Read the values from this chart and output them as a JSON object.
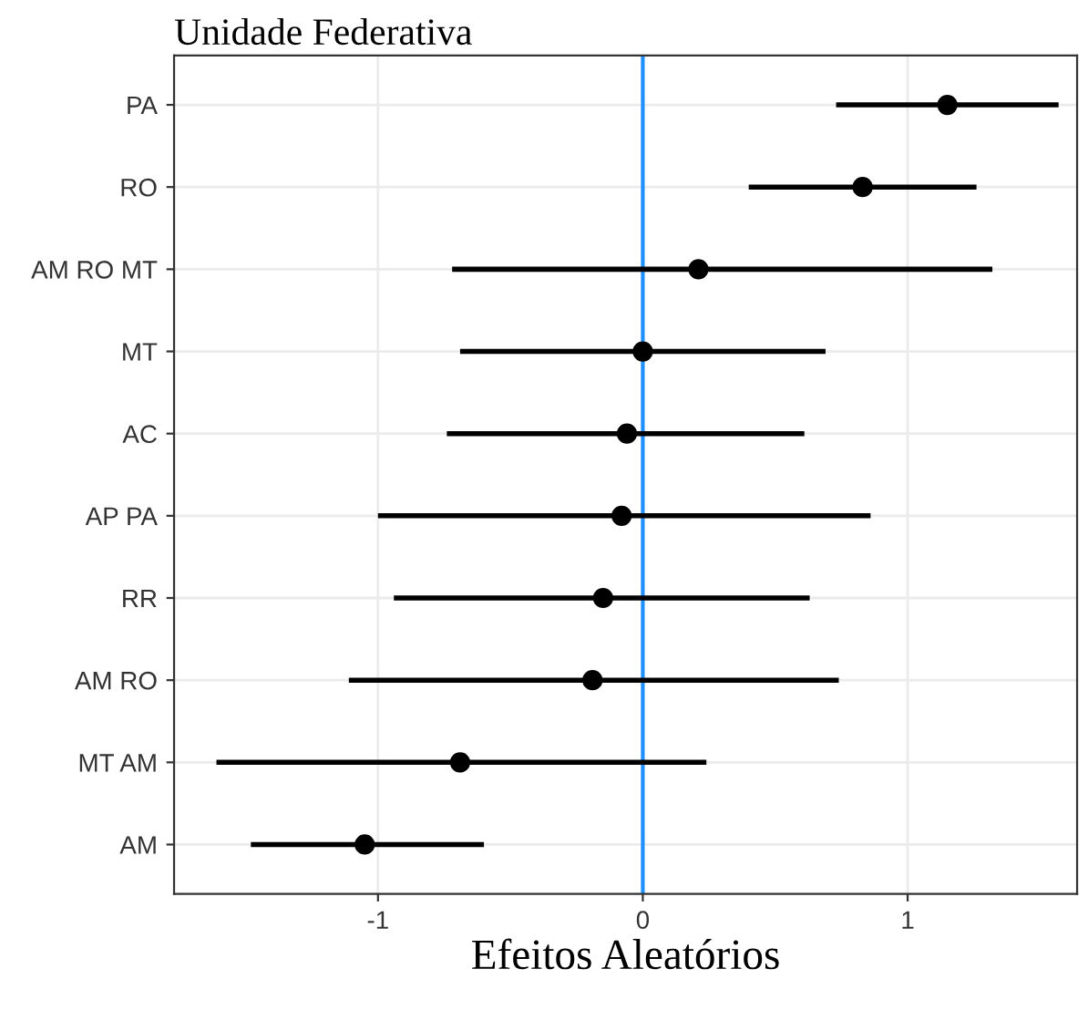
{
  "chart_data": {
    "type": "scatter",
    "orientation": "horizontal",
    "title": "Unidade Federativa",
    "xlabel": "Efeitos Aleatórios",
    "categories": [
      "PA",
      "RO",
      "AM RO MT",
      "MT",
      "AC",
      "AP PA",
      "RR",
      "AM RO",
      "MT AM",
      "AM"
    ],
    "values": [
      1.15,
      0.83,
      0.21,
      0,
      -0.06,
      -0.08,
      -0.15,
      -0.19,
      -0.69,
      -1.05
    ],
    "errors": [
      [
        0.73,
        1.57
      ],
      [
        0.4,
        1.26
      ],
      [
        -0.72,
        1.32
      ],
      [
        -0.69,
        0.69
      ],
      [
        -0.74,
        0.61
      ],
      [
        -1.0,
        0.86
      ],
      [
        -0.94,
        0.63
      ],
      [
        -1.11,
        0.74
      ],
      [
        -1.61,
        0.24
      ],
      [
        -1.48,
        -0.6
      ]
    ],
    "color": "#000000",
    "marker": "circle",
    "xlim": [
      -1.77,
      1.64
    ],
    "xticks": [
      -1,
      0,
      1
    ],
    "ref_lines": [
      {
        "axis": "x",
        "value": 0,
        "label": null,
        "color": "#1e90ff"
      }
    ],
    "grid": true
  }
}
